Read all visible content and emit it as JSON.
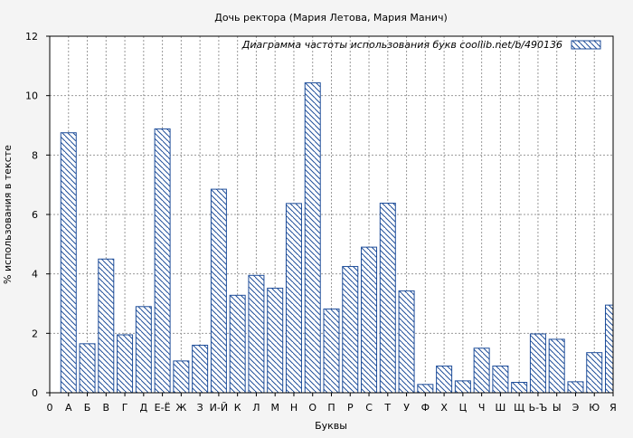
{
  "chart_data": {
    "type": "bar",
    "title": "Дочь ректора (Мария Летова, Мария Манич)",
    "xlabel": "Буквы",
    "ylabel": "% использования в тексте",
    "ylim": [
      0,
      12
    ],
    "yticks": [
      "0",
      "2",
      "4",
      "6",
      "8",
      "10",
      "12"
    ],
    "grid": true,
    "legend": {
      "position": "top-right",
      "label": "Диаграмма частоты использования букв  coollib.net/b/490136"
    },
    "categories": [
      "0",
      "А",
      "Б",
      "В",
      "Г",
      "Д",
      "Е-Ё",
      "Ж",
      "З",
      "И-Й",
      "К",
      "Л",
      "М",
      "Н",
      "О",
      "П",
      "Р",
      "С",
      "Т",
      "У",
      "Ф",
      "Х",
      "Ц",
      "Ч",
      "Ш",
      "Щ",
      "Ь-Ъ",
      "Ы",
      "Э",
      "Ю",
      "Я"
    ],
    "values": [
      0,
      8.75,
      1.65,
      4.5,
      1.95,
      2.9,
      8.88,
      1.07,
      1.6,
      6.85,
      3.28,
      3.95,
      3.52,
      6.37,
      10.43,
      2.82,
      4.25,
      4.9,
      6.38,
      3.43,
      0.28,
      0.9,
      0.4,
      1.5,
      0.9,
      0.35,
      1.98,
      1.8,
      0.37,
      1.35,
      2.95
    ],
    "colors": {
      "bar_stroke": "#1f4e9a",
      "hatch": "#1f4e9a",
      "background": "#f4f4f4",
      "grid": "#999999"
    }
  }
}
